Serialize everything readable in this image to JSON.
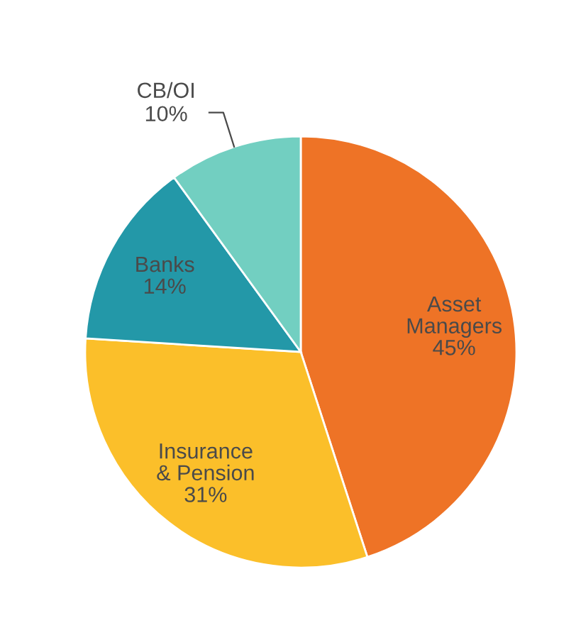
{
  "chart_data": {
    "type": "pie",
    "categories": [
      "Asset\nManagers",
      "Insurance\n& Pension",
      "Banks",
      "CB/OI"
    ],
    "values": [
      45,
      31,
      14,
      10
    ],
    "colors": [
      "#ee7326",
      "#fbbf2a",
      "#2398a8",
      "#72cfc1"
    ],
    "value_labels": [
      "45%",
      "31%",
      "14%",
      "10%"
    ]
  }
}
